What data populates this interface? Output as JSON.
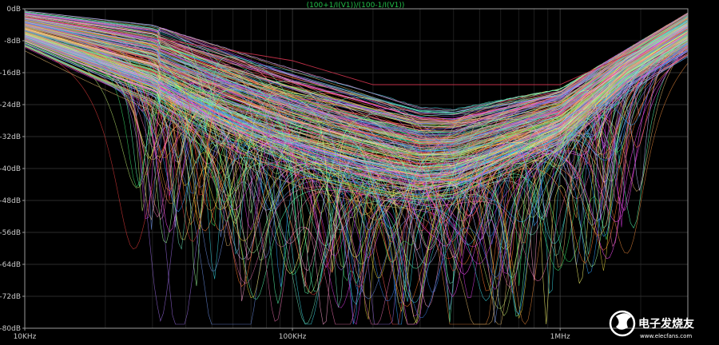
{
  "chart_data": {
    "type": "line",
    "title": "(100+1/I(V1))/(100-1/I(V1))",
    "x_scale": "log",
    "xlim": [
      10000,
      3000000
    ],
    "ylim": [
      -80,
      0
    ],
    "y_ticks": [
      0,
      -8,
      -16,
      -24,
      -32,
      -40,
      -48,
      -56,
      -64,
      -72,
      -80
    ],
    "y_tick_labels": [
      "0dB",
      "-8dB",
      "-16dB",
      "-24dB",
      "-32dB",
      "-40dB",
      "-48dB",
      "-56dB",
      "-64dB",
      "-72dB",
      "-80dB"
    ],
    "x_tick_labels": [
      {
        "value": 10000,
        "label": "10KHz"
      },
      {
        "value": 100000,
        "label": "100KHz"
      },
      {
        "value": 1000000,
        "label": "1MHz"
      }
    ],
    "grid": "on, log minor gridlines",
    "background": "#000000",
    "series_count": 320,
    "series_description": "Monte Carlo family of return-loss curves (dB vs frequency)",
    "envelope_upper": {
      "x": [
        10000,
        30000,
        100000,
        300000,
        400000,
        1000000,
        3000000
      ],
      "y": [
        -0.5,
        -4,
        -15,
        -24.5,
        -25,
        -20,
        -1
      ]
    },
    "notch_floor": {
      "x": [
        30000,
        100000,
        300000,
        700000,
        3000000
      ],
      "y": [
        -60,
        -62,
        -73,
        -76,
        -57
      ]
    },
    "highlighted_trace": {
      "name": "",
      "x": [
        10000,
        100000,
        200000,
        1000000,
        2000000
      ],
      "y": [
        -2,
        -13,
        -19,
        -19,
        -10
      ],
      "color": "#c03048"
    }
  },
  "watermark": {
    "text": "电子发烧友",
    "url": "www.elecfans.com",
    "logo_icon": "elecfans-logo-icon"
  }
}
